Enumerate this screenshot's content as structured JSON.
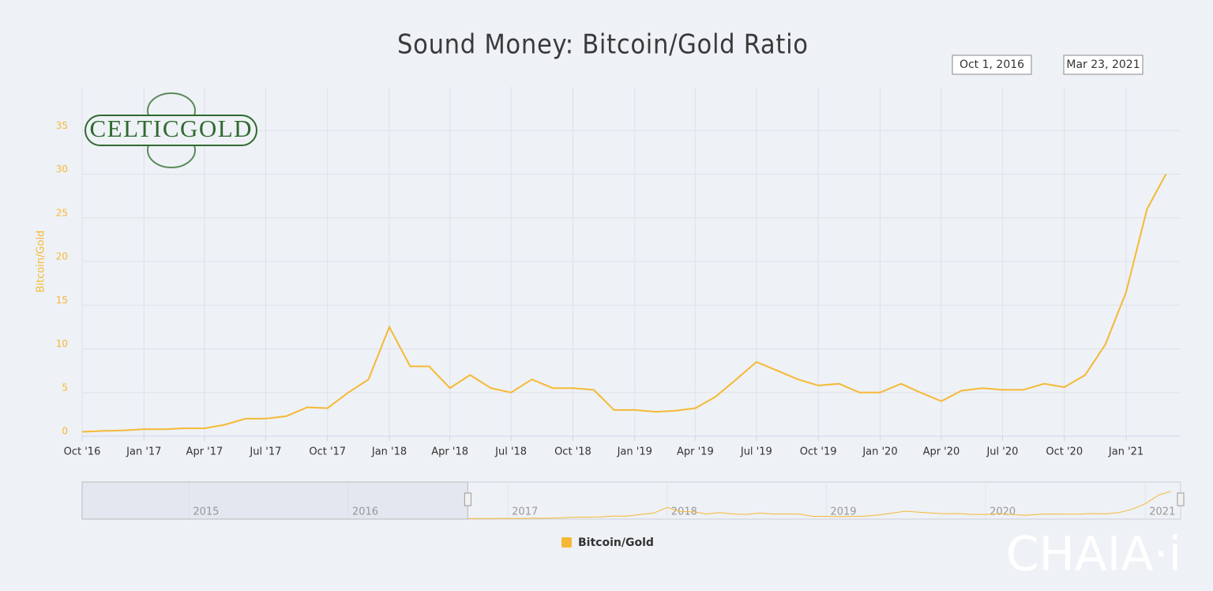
{
  "chart_data": {
    "type": "line",
    "title": "Sound Money: Bitcoin/Gold Ratio",
    "range_selector": [
      "Oct 1, 2016",
      "Mar 23, 2021"
    ],
    "y_label": "Bitcoin/Gold",
    "x": [
      "2016-10",
      "2016-11",
      "2016-12",
      "2017-01",
      "2017-02",
      "2017-03",
      "2017-04",
      "2017-05",
      "2017-06",
      "2017-07",
      "2017-08",
      "2017-09",
      "2017-10",
      "2017-11",
      "2017-12",
      "2018-01",
      "2018-02",
      "2018-03",
      "2018-04",
      "2018-05",
      "2018-06",
      "2018-07",
      "2018-08",
      "2018-09",
      "2018-10",
      "2018-11",
      "2018-12",
      "2019-01",
      "2019-02",
      "2019-03",
      "2019-04",
      "2019-05",
      "2019-06",
      "2019-07",
      "2019-08",
      "2019-09",
      "2019-10",
      "2019-11",
      "2019-12",
      "2020-01",
      "2020-02",
      "2020-03",
      "2020-04",
      "2020-05",
      "2020-06",
      "2020-07",
      "2020-08",
      "2020-09",
      "2020-10",
      "2020-11",
      "2020-12",
      "2021-01",
      "2021-02",
      "2021-03"
    ],
    "series": [
      {
        "name": "Bitcoin/Gold",
        "color": "#f5b935",
        "values": [
          0.5,
          0.6,
          0.65,
          0.8,
          0.8,
          0.9,
          0.9,
          1.3,
          2.0,
          2.0,
          2.3,
          3.3,
          3.2,
          5.0,
          6.5,
          12.5,
          8.0,
          8.0,
          5.5,
          7.0,
          5.5,
          5.0,
          6.5,
          5.5,
          5.5,
          5.3,
          3.0,
          3.0,
          2.8,
          2.9,
          3.2,
          4.5,
          6.5,
          8.5,
          7.5,
          6.5,
          5.8,
          6.0,
          5.0,
          5.0,
          6.0,
          5.0,
          4.0,
          5.2,
          5.5,
          5.3,
          5.3,
          6.0,
          5.6,
          7.0,
          10.5,
          16.5,
          26.0,
          30.0
        ]
      }
    ],
    "xlim": [
      "2016-10-01",
      "2021-03-23"
    ],
    "xticks": [
      {
        "value": "2016-10",
        "label": "Oct '16"
      },
      {
        "value": "2017-01",
        "label": "Jan '17"
      },
      {
        "value": "2017-04",
        "label": "Apr '17"
      },
      {
        "value": "2017-07",
        "label": "Jul '17"
      },
      {
        "value": "2017-10",
        "label": "Oct '17"
      },
      {
        "value": "2018-01",
        "label": "Jan '18"
      },
      {
        "value": "2018-04",
        "label": "Apr '18"
      },
      {
        "value": "2018-07",
        "label": "Jul '18"
      },
      {
        "value": "2018-10",
        "label": "Oct '18"
      },
      {
        "value": "2019-01",
        "label": "Jan '19"
      },
      {
        "value": "2019-04",
        "label": "Apr '19"
      },
      {
        "value": "2019-07",
        "label": "Jul '19"
      },
      {
        "value": "2019-10",
        "label": "Oct '19"
      },
      {
        "value": "2020-01",
        "label": "Jan '20"
      },
      {
        "value": "2020-04",
        "label": "Apr '20"
      },
      {
        "value": "2020-07",
        "label": "Jul '20"
      },
      {
        "value": "2020-10",
        "label": "Oct '20"
      },
      {
        "value": "2021-01",
        "label": "Jan '21"
      }
    ],
    "ylim": [
      0,
      40
    ],
    "yticks": [
      0,
      5,
      10,
      15,
      20,
      25,
      30,
      35
    ],
    "grid": true,
    "navigator": {
      "xlim": [
        "2014-05",
        "2021-03-23"
      ],
      "xticks": [
        2015,
        2016,
        2017,
        2018,
        2019,
        2020,
        2021
      ]
    }
  },
  "logo": "CELTICGOLD",
  "watermark": "CHAIA·i"
}
